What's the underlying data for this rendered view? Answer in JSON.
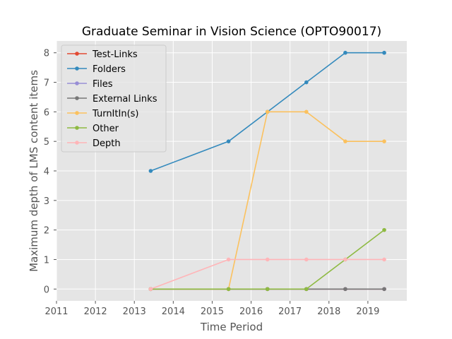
{
  "chart_data": {
    "type": "line",
    "title": "Graduate Seminar in Vision Science (OPTO90017)",
    "xlabel": "Time Period",
    "ylabel": "Maximum depth of LMS content items",
    "xlim": [
      2011,
      2020
    ],
    "ylim": [
      -0.4,
      8.4
    ],
    "xticks": [
      "2011",
      "2012",
      "2013",
      "2014",
      "2015",
      "2016",
      "2017",
      "2018",
      "2019"
    ],
    "yticks": [
      "0",
      "1",
      "2",
      "3",
      "4",
      "5",
      "6",
      "7",
      "8"
    ],
    "grid": true,
    "legend_position": "upper-left",
    "series": [
      {
        "name": "Test-Links",
        "color": "#E24A33",
        "x": [
          2013.42,
          2015.42,
          2016.42,
          2017.42,
          2018.42,
          2019.42
        ],
        "y": [
          0,
          0,
          0,
          0,
          0,
          0
        ]
      },
      {
        "name": "Folders",
        "color": "#348ABD",
        "x": [
          2013.42,
          2015.42,
          2016.42,
          2017.42,
          2018.42,
          2019.42
        ],
        "y": [
          4,
          5,
          6,
          7,
          8,
          8
        ]
      },
      {
        "name": "Files",
        "color": "#988ED5",
        "x": [
          2013.42,
          2015.42,
          2016.42,
          2017.42,
          2018.42,
          2019.42
        ],
        "y": [
          0,
          0,
          0,
          0,
          0,
          0
        ]
      },
      {
        "name": "External Links",
        "color": "#777777",
        "x": [
          2013.42,
          2015.42,
          2016.42,
          2017.42,
          2018.42,
          2019.42
        ],
        "y": [
          0,
          0,
          0,
          0,
          0,
          0
        ]
      },
      {
        "name": "TurnItIn(s)",
        "color": "#FBC15E",
        "x": [
          2013.42,
          2015.42,
          2016.42,
          2017.42,
          2018.42,
          2019.42
        ],
        "y": [
          0,
          0,
          6,
          6,
          5,
          5
        ]
      },
      {
        "name": "Other",
        "color": "#8EBA42",
        "x": [
          2013.42,
          2015.42,
          2016.42,
          2017.42,
          2018.42,
          2019.42
        ],
        "y": [
          0,
          0,
          0,
          0,
          1,
          2
        ]
      },
      {
        "name": "Depth",
        "color": "#FFB5B8",
        "x": [
          2013.42,
          2015.42,
          2016.42,
          2017.42,
          2018.42,
          2019.42
        ],
        "y": [
          0,
          1,
          1,
          1,
          1,
          1
        ]
      }
    ]
  }
}
